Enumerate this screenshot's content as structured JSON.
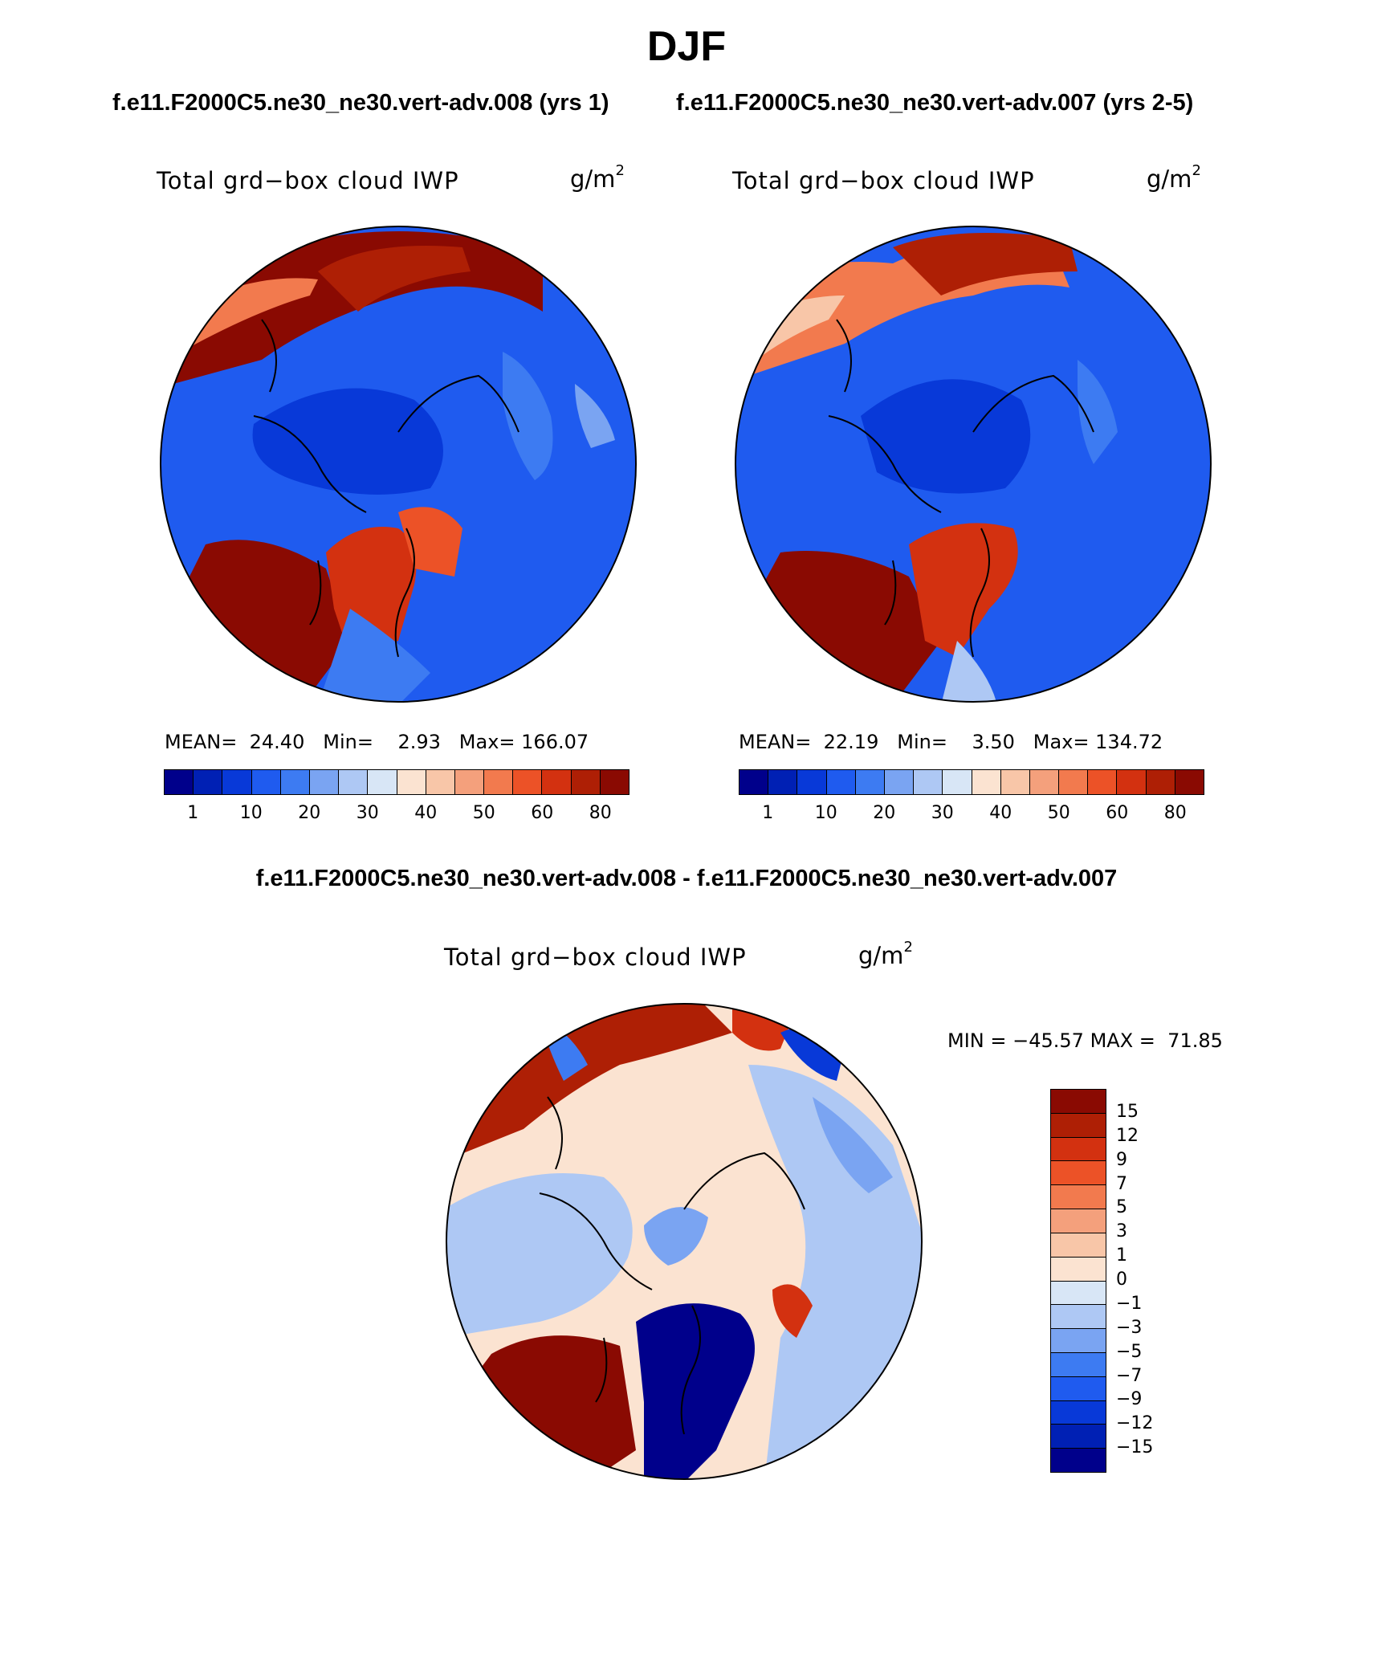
{
  "title": "DJF",
  "subtitle_left": "f.e11.F2000C5.ne30_ne30.vert-adv.008 (yrs 1)",
  "subtitle_right": "f.e11.F2000C5.ne30_ne30.vert-adv.007 (yrs 2-5)",
  "diff_title": "f.e11.F2000C5.ne30_ne30.vert-adv.008 - f.e11.F2000C5.ne30_ne30.vert-adv.007",
  "colors": {
    "abs_scale": [
      "#00008b",
      "#0020b4",
      "#0839d8",
      "#1f5bef",
      "#3d7bf2",
      "#7aa4f2",
      "#aec8f4",
      "#d8e6f6",
      "#fbe3d1",
      "#f8c6a8",
      "#f4a07c",
      "#f27a4e",
      "#ec5227",
      "#d33110",
      "#ae1f05",
      "#8a0a02"
    ],
    "diff_scale": [
      "#00008b",
      "#0020b4",
      "#0839d8",
      "#1f5bef",
      "#3d7bf2",
      "#7aa4f2",
      "#aec8f4",
      "#d8e6f6",
      "#fbe3d1",
      "#f8c6a8",
      "#f4a07c",
      "#f27a4e",
      "#ec5227",
      "#d33110",
      "#ae1f05",
      "#8a0a02"
    ]
  },
  "panels": [
    {
      "label": "Total grd−box cloud IWP",
      "units": "g/m",
      "units_exp": "2",
      "mean_label": "MEAN=",
      "mean": "24.40",
      "min_label": "Min=",
      "min": "2.93",
      "max_label": "Max=",
      "max": "166.07",
      "ticks": [
        "1",
        "10",
        "20",
        "30",
        "40",
        "50",
        "60",
        "80"
      ]
    },
    {
      "label": "Total grd−box cloud IWP",
      "units": "g/m",
      "units_exp": "2",
      "mean_label": "MEAN=",
      "mean": "22.19",
      "min_label": "Min=",
      "min": "3.50",
      "max_label": "Max=",
      "max": "134.72",
      "ticks": [
        "1",
        "10",
        "20",
        "30",
        "40",
        "50",
        "60",
        "80"
      ]
    }
  ],
  "diff_panel": {
    "label": "Total grd−box cloud IWP",
    "units": "g/m",
    "units_exp": "2",
    "min_label": "MIN =",
    "min": "−45.57",
    "max_label": "MAX =",
    "max": "71.85",
    "ticks": [
      "15",
      "12",
      "9",
      "7",
      "5",
      "3",
      "1",
      "0",
      "−1",
      "−3",
      "−5",
      "−7",
      "−9",
      "−12",
      "−15"
    ]
  }
}
